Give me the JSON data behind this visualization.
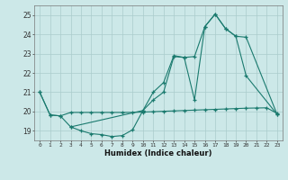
{
  "xlabel": "Humidex (Indice chaleur)",
  "bg_color": "#cce8e8",
  "line_color": "#1a7a6e",
  "grid_color": "#aacccc",
  "xlim": [
    -0.5,
    23.5
  ],
  "ylim": [
    18.5,
    25.5
  ],
  "yticks": [
    19,
    20,
    21,
    22,
    23,
    24,
    25
  ],
  "xticks": [
    0,
    1,
    2,
    3,
    4,
    5,
    6,
    7,
    8,
    9,
    10,
    11,
    12,
    13,
    14,
    15,
    16,
    17,
    18,
    19,
    20,
    21,
    22,
    23
  ],
  "series": [
    {
      "x": [
        0,
        1,
        2,
        3,
        4,
        5,
        6,
        7,
        8,
        9,
        10,
        11,
        12,
        13,
        14,
        15,
        16,
        17,
        18,
        19,
        20,
        21,
        22,
        23
      ],
      "y": [
        21.0,
        19.82,
        19.77,
        19.95,
        19.95,
        19.95,
        19.95,
        19.95,
        19.95,
        19.95,
        19.97,
        19.99,
        20.01,
        20.03,
        20.05,
        20.07,
        20.09,
        20.11,
        20.13,
        20.15,
        20.17,
        20.18,
        20.19,
        19.9
      ]
    },
    {
      "x": [
        0,
        1,
        2,
        3,
        4,
        5,
        6,
        7,
        8,
        9,
        10,
        11,
        12,
        13,
        14,
        15,
        16,
        17,
        18,
        19,
        20,
        23
      ],
      "y": [
        21.0,
        19.82,
        19.77,
        19.2,
        19.0,
        18.85,
        18.8,
        18.7,
        18.75,
        19.05,
        20.05,
        20.6,
        21.0,
        22.85,
        22.8,
        20.6,
        24.4,
        25.05,
        24.3,
        23.9,
        21.85,
        19.85
      ]
    },
    {
      "x": [
        3,
        10,
        11,
        12,
        13,
        14,
        15,
        16,
        17,
        18,
        19,
        20,
        23
      ],
      "y": [
        19.2,
        20.05,
        21.0,
        21.5,
        22.9,
        22.8,
        22.85,
        24.4,
        25.05,
        24.3,
        23.9,
        23.85,
        19.85
      ]
    }
  ]
}
